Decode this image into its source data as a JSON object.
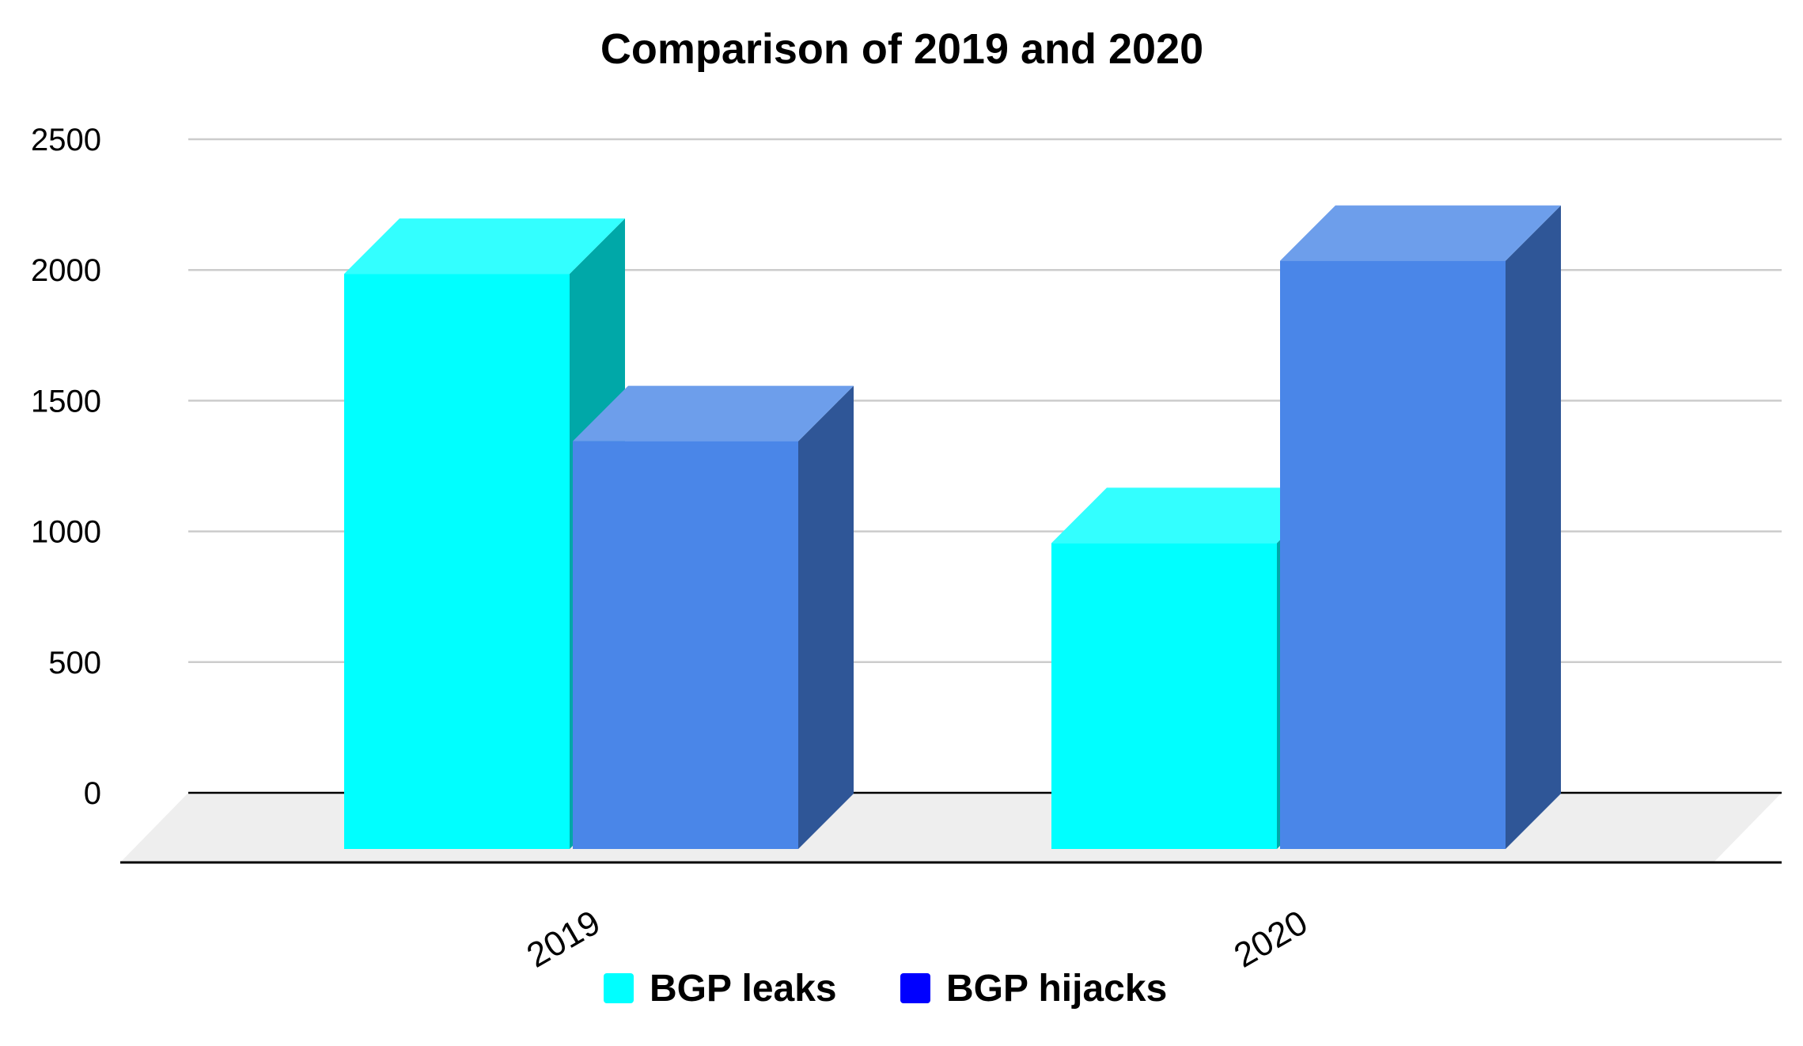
{
  "chart_data": {
    "type": "bar",
    "title": "Comparison of 2019 and 2020",
    "xlabel": "",
    "ylabel": "",
    "categories": [
      "2019",
      "2020"
    ],
    "series": [
      {
        "name": "BGP leaks",
        "values": [
          2200,
          1170
        ],
        "color": "#00FFFF",
        "top_color": "#33FFFF",
        "side_color": "#00A8A8"
      },
      {
        "name": "BGP hijacks",
        "values": [
          1560,
          2250
        ],
        "color": "#4A86E8",
        "top_color": "#6D9EEB",
        "side_color": "#2F5697"
      }
    ],
    "legend_swatch_colors": [
      "#00FFFF",
      "#0000FF"
    ],
    "ylim": [
      0,
      2500
    ],
    "y_ticks": [
      "0",
      "500",
      "1000",
      "1500",
      "2000",
      "2500"
    ],
    "grid": true,
    "legend_position": "bottom",
    "three_d": true
  }
}
